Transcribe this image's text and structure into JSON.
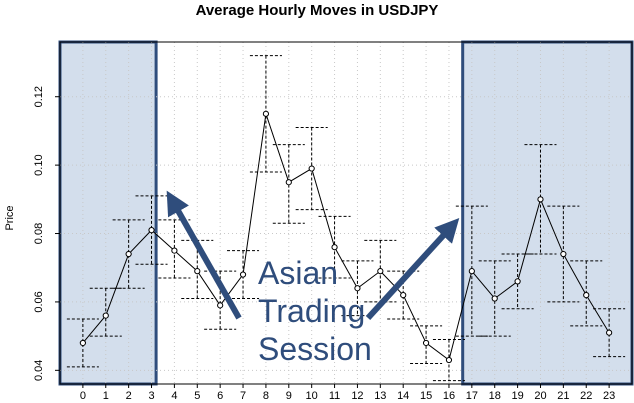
{
  "chart_data": {
    "type": "line",
    "title": "Average Hourly Moves in USDJPY",
    "xlabel": "",
    "ylabel": "Price",
    "x": [
      0,
      1,
      2,
      3,
      4,
      5,
      6,
      7,
      8,
      9,
      10,
      11,
      12,
      13,
      14,
      15,
      16,
      17,
      18,
      19,
      20,
      21,
      22,
      23
    ],
    "xlim": [
      -1,
      24
    ],
    "ylim": [
      0.036,
      0.136
    ],
    "y_ticks": [
      0.04,
      0.06,
      0.08,
      0.1,
      0.12
    ],
    "grid": true,
    "series": [
      {
        "values": [
          0.048,
          0.056,
          0.074,
          0.081,
          0.075,
          0.069,
          0.059,
          0.068,
          0.115,
          0.095,
          0.099,
          0.076,
          0.064,
          0.069,
          0.062,
          0.048,
          0.043,
          0.069,
          0.061,
          0.066,
          0.09,
          0.074,
          0.062,
          0.051
        ],
        "upper": [
          0.055,
          0.064,
          0.084,
          0.091,
          0.084,
          0.078,
          0.069,
          0.075,
          0.132,
          0.106,
          0.111,
          0.085,
          0.072,
          0.078,
          0.069,
          0.053,
          0.049,
          0.088,
          0.072,
          0.074,
          0.106,
          0.088,
          0.072,
          0.058
        ],
        "lower": [
          0.041,
          0.05,
          0.064,
          0.071,
          0.067,
          0.061,
          0.052,
          0.061,
          0.098,
          0.083,
          0.087,
          0.067,
          0.056,
          0.06,
          0.055,
          0.042,
          0.037,
          0.05,
          0.05,
          0.058,
          0.074,
          0.06,
          0.053,
          0.044
        ]
      }
    ],
    "shaded_regions": [
      [
        -1,
        3.2
      ],
      [
        16.6,
        24
      ]
    ],
    "annotations": [
      {
        "lines": [
          "Asian",
          "Trading",
          "Session"
        ]
      }
    ]
  }
}
